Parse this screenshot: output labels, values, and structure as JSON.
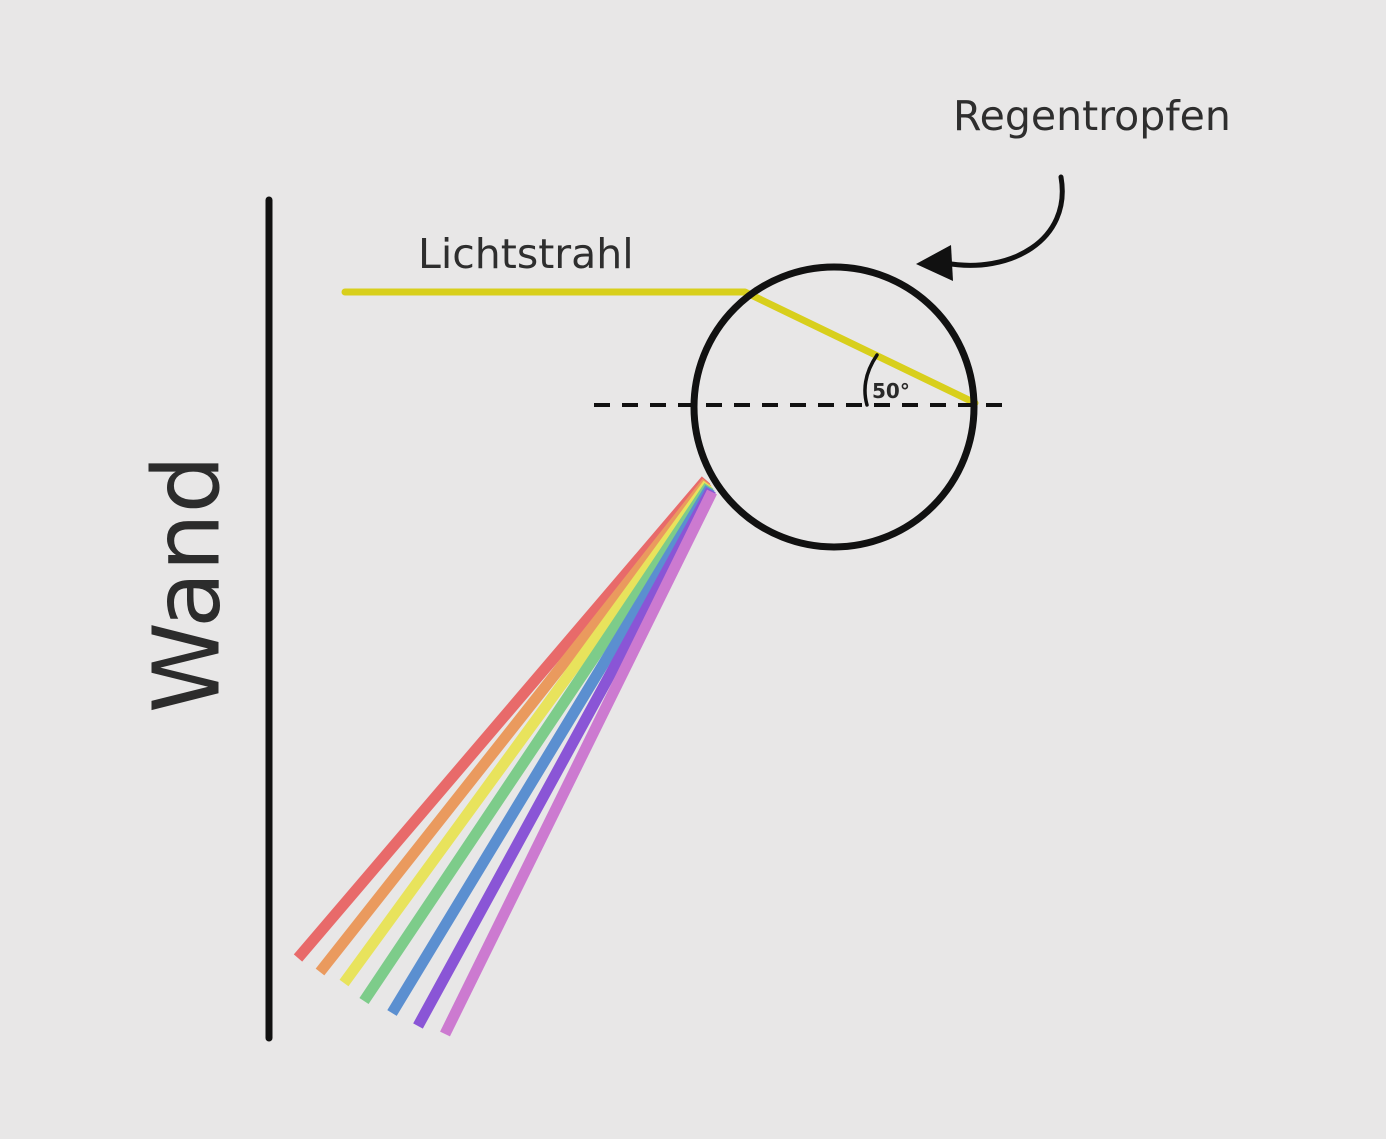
{
  "labels": {
    "drop": "Regentropfen",
    "ray": "Lichtstrahl",
    "angle": "50°",
    "wall": "Wand"
  },
  "colors": {
    "background": "#e8e7e7",
    "ray": "#d8cf1c",
    "outline": "#111111",
    "spectrum": [
      "#e86a6a",
      "#ea9a5e",
      "#e8e35c",
      "#7dcc8a",
      "#5b8fd0",
      "#8a55d6",
      "#cc7ad0"
    ]
  },
  "angle_degrees": 50
}
